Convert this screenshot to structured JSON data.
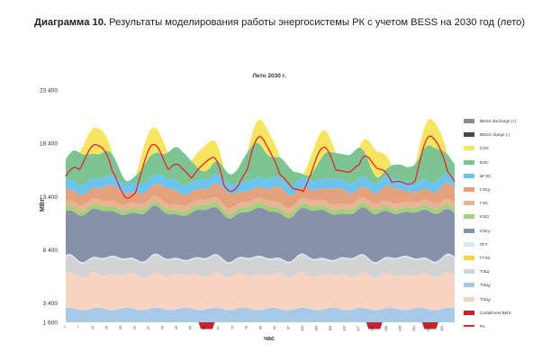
{
  "header": {
    "title_bold": "Диаграмма 10.",
    "title_rest": " Результаты моделирования работы энергосистемы РК с учетом BESS на 2030 год (лето)"
  },
  "chart_data": {
    "type": "area",
    "title": "Лето 2030 г.",
    "xlabel": "час",
    "ylabel": "МВт",
    "ylim": [
      1600,
      23400
    ],
    "yticks": [
      "23 400",
      "18 400",
      "13 400",
      "8 400",
      "3 400",
      "1 600"
    ],
    "x_tick_step": 6,
    "x_range": [
      1,
      168
    ],
    "legend_position": "right",
    "series": [
      {
        "name": "BESS discharge (+)",
        "color": "#8c8c8c",
        "kind": "stack",
        "values": [
          0,
          0,
          0,
          0,
          0,
          0,
          0,
          0,
          0,
          0,
          0,
          0,
          0,
          0,
          0,
          0,
          0,
          0,
          0,
          0,
          0,
          0,
          0,
          0,
          0,
          0,
          0,
          0,
          0,
          0,
          0,
          0,
          0,
          0,
          0,
          0,
          0,
          0,
          0,
          0,
          0,
          0,
          0,
          0,
          0,
          0,
          0,
          0,
          0,
          0,
          0,
          0,
          0,
          0,
          0,
          0,
          0,
          0,
          0,
          0,
          0,
          0,
          0,
          0,
          0,
          0,
          0,
          0,
          0,
          0,
          0,
          0,
          0,
          0,
          0,
          0,
          0,
          0,
          0,
          0,
          0,
          0,
          0,
          0,
          0,
          0,
          0,
          0,
          0,
          0,
          0,
          0,
          0,
          0,
          0,
          0,
          0,
          0,
          0,
          0,
          0,
          0,
          0,
          0,
          0,
          0,
          0,
          0,
          0,
          0,
          0,
          0,
          0,
          0,
          0,
          0,
          0,
          0,
          0,
          0,
          0,
          0,
          0,
          0,
          0,
          0,
          0,
          0,
          0,
          0,
          0,
          0,
          0,
          0,
          0,
          0,
          0,
          0,
          0,
          0,
          0,
          0,
          0,
          0,
          0,
          0,
          0,
          0,
          0,
          0,
          0,
          0,
          0,
          0,
          0,
          0,
          0,
          0,
          0,
          0,
          0,
          0,
          0,
          0,
          0,
          0,
          0,
          0
        ]
      },
      {
        "name": "BESS charge (-)",
        "color": "#4a4a4a",
        "kind": "stack",
        "values": [
          0,
          0,
          0,
          0,
          0,
          0,
          0,
          0,
          0,
          0,
          0,
          0,
          0,
          0,
          0,
          0,
          0,
          0,
          0,
          0,
          0,
          0,
          0,
          0,
          0,
          0,
          0,
          0,
          0,
          0,
          0,
          0,
          0,
          0,
          0,
          0,
          0,
          0,
          0,
          0,
          0,
          0,
          0,
          0,
          0,
          0,
          0,
          0,
          0,
          0,
          0,
          0,
          0,
          0,
          0,
          0,
          0,
          0,
          0,
          0,
          0,
          0,
          0,
          0,
          0,
          0,
          0,
          0,
          0,
          0,
          0,
          0,
          0,
          0,
          0,
          0,
          0,
          0,
          0,
          0,
          0,
          0,
          0,
          0,
          0,
          0,
          0,
          0,
          0,
          0,
          0,
          0,
          0,
          0,
          0,
          0,
          0,
          0,
          0,
          0,
          0,
          0,
          0,
          0,
          0,
          0,
          0,
          0,
          0,
          0,
          0,
          0,
          0,
          0,
          0,
          0,
          0,
          0,
          0,
          0,
          0,
          0,
          0,
          0,
          0,
          0,
          0,
          0,
          0,
          0,
          0,
          0,
          0,
          0,
          0,
          0,
          0,
          0,
          0,
          0,
          0,
          0,
          0,
          0,
          0,
          0,
          0,
          0,
          0,
          0,
          0,
          0,
          0,
          0,
          0,
          0,
          0,
          0,
          0,
          0,
          0,
          0,
          0,
          0,
          0,
          0,
          0,
          0
        ]
      },
      {
        "name": "СЭС",
        "color": "#f7e460",
        "kind": "stack",
        "values": []
      },
      {
        "name": "ВЭС",
        "color": "#7dc493",
        "kind": "stack",
        "values": []
      },
      {
        "name": "мГЭС",
        "color": "#6cc3ee",
        "kind": "stack",
        "values": []
      },
      {
        "name": "ГЭСр",
        "color": "#e3a27c",
        "kind": "stack",
        "values": []
      },
      {
        "name": "ГЭС",
        "color": "#e8b493",
        "kind": "stack",
        "values": []
      },
      {
        "name": "КЭСг",
        "color": "#a3cf7e",
        "kind": "stack",
        "values": []
      },
      {
        "name": "КЭСу",
        "color": "#8791a8",
        "kind": "stack",
        "values": []
      },
      {
        "name": "ПГУ",
        "color": "#d9e5f5",
        "kind": "stack",
        "values": []
      },
      {
        "name": "ГТЭС",
        "color": "#f4d24e",
        "kind": "stack",
        "values": []
      },
      {
        "name": "ТЭЦг",
        "color": "#d3d3d3",
        "kind": "stack",
        "values": []
      },
      {
        "name": "ТЭЦу",
        "color": "#a8c9e8",
        "kind": "stack",
        "values": []
      },
      {
        "name": "ТЭЦу",
        "color": "#f6d4c1",
        "kind": "stack",
        "values": []
      },
      {
        "name": "Curtailment ВИЭ",
        "color": "#c0262b",
        "kind": "stack",
        "values": []
      },
      {
        "name": "Рн",
        "color": "#e8242d",
        "kind": "line",
        "values": []
      }
    ]
  }
}
